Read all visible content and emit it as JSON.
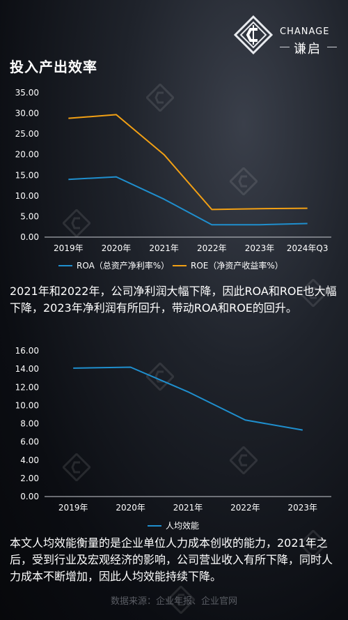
{
  "page": {
    "title": "投入产出效率",
    "paragraph_1": "2021年和2022年，公司净利润大幅下降，因此ROA和ROE也大幅下降，2023年净利润有所回升，带动ROA和ROE的回升。",
    "paragraph_2": "本文人均效能衡量的是企业单位人力成本创收的能力，2021年之后，受到行业及宏观经济的影响，公司营业收入有所下降，同时人力成本不断增加，因此人均效能持续下降。",
    "source": "数据来源：企业年报、企业官网"
  },
  "logo": {
    "name_en": "CHANAGE",
    "name_cn": "谦启"
  },
  "colors": {
    "roa": "#1f8fce",
    "roe": "#f2a014",
    "per_capita": "#1f8fce",
    "axis": "#c9ccd2",
    "text": "#ffffff"
  },
  "chart_data": [
    {
      "type": "line",
      "categories": [
        "2019年",
        "2020年",
        "2021年",
        "2022年",
        "2023年",
        "2024年Q3"
      ],
      "series": [
        {
          "name": "ROA（总资产净利率%）",
          "values": [
            14.0,
            14.6,
            9.2,
            3.0,
            3.0,
            3.3
          ]
        },
        {
          "name": "ROE（净资产收益率%）",
          "values": [
            28.8,
            29.7,
            20.0,
            6.7,
            6.9,
            7.0
          ]
        }
      ],
      "y_ticks": [
        "35.00",
        "30.00",
        "25.00",
        "20.00",
        "15.00",
        "10.00",
        "5.00",
        "0.00"
      ],
      "ylim": [
        0,
        35
      ],
      "grid": false,
      "legend": "bottom"
    },
    {
      "type": "line",
      "categories": [
        "2019年",
        "2020年",
        "2021年",
        "2022年",
        "2023年"
      ],
      "series": [
        {
          "name": "人均效能",
          "values": [
            14.1,
            14.2,
            11.5,
            8.4,
            7.3
          ]
        }
      ],
      "y_ticks": [
        "16.00",
        "14.00",
        "12.00",
        "10.00",
        "8.00",
        "6.00",
        "4.00",
        "2.00",
        "0.00"
      ],
      "ylim": [
        0,
        16
      ],
      "grid": false,
      "legend": "bottom"
    }
  ]
}
